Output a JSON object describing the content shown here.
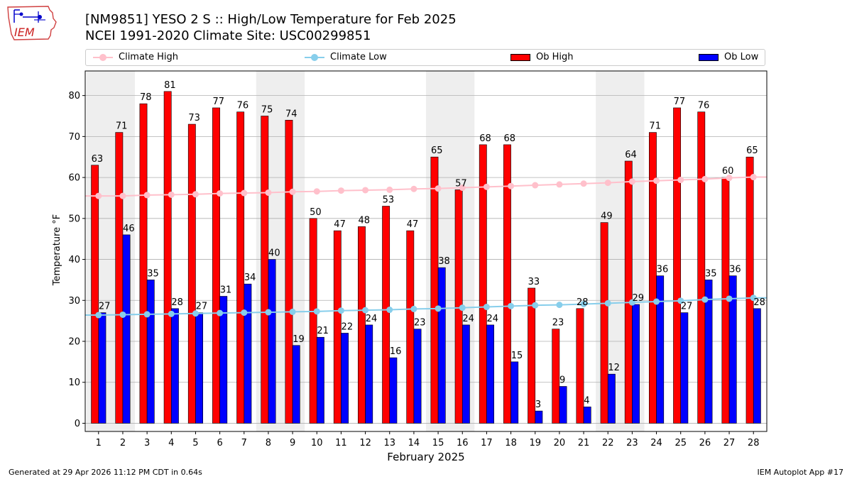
{
  "header": {
    "title_line1": "[NM9851] YESO 2 S :: High/Low Temperature for Feb 2025",
    "title_line2": "NCEI 1991-2020 Climate Site: USC00299851",
    "logo_text": "IEM"
  },
  "legend": {
    "climate_high": "Climate High",
    "climate_low": "Climate Low",
    "ob_high": "Ob High",
    "ob_low": "Ob Low"
  },
  "footer": {
    "generated": "Generated at 29 Apr 2026 11:12 PM CDT in 0.64s",
    "app": "IEM Autoplot App #17"
  },
  "colors": {
    "ob_high": "#ff0000",
    "ob_low": "#0000ff",
    "climate_high": "#ffc0cb",
    "climate_low": "#87ceeb",
    "weekend_shade": "#eeeeee",
    "grid": "#b0b0b0"
  },
  "chart_data": {
    "type": "bar",
    "title": "[NM9851] YESO 2 S :: High/Low Temperature for Feb 2025",
    "xlabel": "February 2025",
    "ylabel": "Temperature °F",
    "ylim": [
      -2,
      86
    ],
    "yticks": [
      0,
      10,
      20,
      30,
      40,
      50,
      60,
      70,
      80
    ],
    "categories": [
      "1",
      "2",
      "3",
      "4",
      "5",
      "6",
      "7",
      "8",
      "9",
      "10",
      "11",
      "12",
      "13",
      "14",
      "15",
      "16",
      "17",
      "18",
      "19",
      "20",
      "21",
      "22",
      "23",
      "24",
      "25",
      "26",
      "27",
      "28"
    ],
    "shaded_days": [
      [
        1,
        2
      ],
      [
        8,
        9
      ],
      [
        15,
        16
      ],
      [
        22,
        23
      ]
    ],
    "series": [
      {
        "name": "Ob High",
        "kind": "bar",
        "values": [
          63,
          71,
          78,
          81,
          73,
          77,
          76,
          75,
          74,
          50,
          47,
          48,
          53,
          47,
          65,
          57,
          68,
          68,
          33,
          23,
          28,
          49,
          64,
          71,
          77,
          76,
          60,
          65
        ]
      },
      {
        "name": "Ob Low",
        "kind": "bar",
        "values": [
          27,
          46,
          35,
          28,
          27,
          31,
          34,
          40,
          19,
          21,
          22,
          24,
          16,
          23,
          38,
          24,
          24,
          15,
          3,
          9,
          4,
          12,
          29,
          36,
          27,
          35,
          36,
          28
        ]
      },
      {
        "name": "Climate High",
        "kind": "line",
        "values": [
          55.5,
          55.5,
          55.7,
          55.8,
          55.9,
          56.1,
          56.2,
          56.3,
          56.5,
          56.6,
          56.8,
          56.9,
          57.0,
          57.2,
          57.3,
          57.5,
          57.7,
          57.9,
          58.1,
          58.3,
          58.5,
          58.7,
          59.0,
          59.2,
          59.4,
          59.6,
          59.9,
          60.1
        ]
      },
      {
        "name": "Climate Low",
        "kind": "line",
        "values": [
          26.4,
          26.5,
          26.6,
          26.7,
          26.8,
          26.9,
          27.0,
          27.1,
          27.2,
          27.3,
          27.5,
          27.6,
          27.7,
          27.9,
          28.0,
          28.2,
          28.4,
          28.6,
          28.8,
          28.9,
          29.1,
          29.3,
          29.5,
          29.7,
          29.9,
          30.2,
          30.4,
          30.6
        ]
      }
    ]
  }
}
